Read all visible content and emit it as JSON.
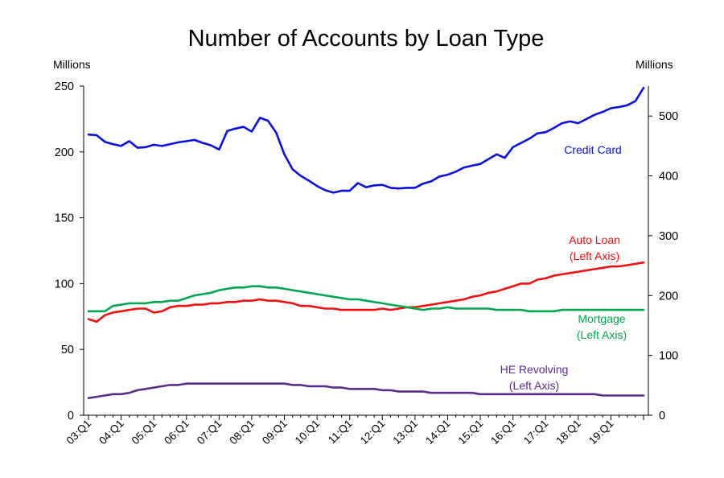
{
  "chart_data": {
    "type": "line",
    "title": "Number of Accounts by Loan Type",
    "y_left": {
      "unit_label": "Millions",
      "range": [
        0,
        250
      ],
      "ticks": [
        0,
        50,
        100,
        150,
        200,
        250
      ]
    },
    "y_right": {
      "unit_label": "Millions",
      "range": [
        0,
        550
      ],
      "ticks": [
        0,
        100,
        200,
        300,
        400,
        500
      ]
    },
    "x_ticks": [
      "03:Q1",
      "04:Q1",
      "05:Q1",
      "06:Q1",
      "07:Q1",
      "08:Q1",
      "09:Q1",
      "10:Q1",
      "11:Q1",
      "12:Q1",
      "13:Q1",
      "14:Q1",
      "15:Q1",
      "16:Q1",
      "17:Q1",
      "18:Q1",
      "19:Q1"
    ],
    "x_start": "2003:Q1",
    "grid": false,
    "legend": "inline labels",
    "series": [
      {
        "name": "Credit Card",
        "label_lines": [
          "Credit Card"
        ],
        "axis": "right",
        "color": "#0a10e0",
        "values": [
          469,
          468,
          457,
          453,
          450,
          458,
          447,
          448,
          452,
          450,
          453,
          456,
          458,
          460,
          455,
          451,
          444,
          475,
          479,
          482,
          474,
          497,
          492,
          472,
          436,
          411,
          400,
          392,
          383,
          376,
          372,
          375,
          375,
          388,
          381,
          384,
          385,
          380,
          379,
          380,
          380,
          387,
          391,
          399,
          402,
          407,
          414,
          417,
          420,
          428,
          436,
          430,
          448,
          455,
          462,
          471,
          473,
          480,
          488,
          491,
          488,
          495,
          502,
          507,
          513,
          515,
          518,
          525,
          547
        ]
      },
      {
        "name": "Auto Loan",
        "label_lines": [
          "Auto Loan",
          "(Left Axis)"
        ],
        "axis": "left",
        "color": "#f01010",
        "values": [
          73,
          71,
          76,
          78,
          79,
          80,
          81,
          81,
          78,
          79,
          82,
          83,
          83,
          84,
          84,
          85,
          85,
          86,
          86,
          87,
          87,
          88,
          87,
          87,
          86,
          85,
          83,
          83,
          82,
          81,
          81,
          80,
          80,
          80,
          80,
          80,
          81,
          80,
          81,
          82,
          82,
          83,
          84,
          85,
          86,
          87,
          88,
          90,
          91,
          93,
          94,
          96,
          98,
          100,
          100,
          103,
          104,
          106,
          107,
          108,
          109,
          110,
          111,
          112,
          113,
          113,
          114,
          115,
          116
        ]
      },
      {
        "name": "Mortgage",
        "label_lines": [
          "Mortgage",
          "(Left Axis)"
        ],
        "axis": "left",
        "color": "#00a651",
        "values": [
          79,
          79,
          79,
          83,
          84,
          85,
          85,
          85,
          86,
          86,
          87,
          87,
          89,
          91,
          92,
          93,
          95,
          96,
          97,
          97,
          98,
          98,
          97,
          97,
          96,
          95,
          94,
          93,
          92,
          91,
          90,
          89,
          88,
          88,
          87,
          86,
          85,
          84,
          83,
          82,
          81,
          80,
          81,
          81,
          82,
          81,
          81,
          81,
          81,
          81,
          80,
          80,
          80,
          80,
          79,
          79,
          79,
          79,
          80,
          80,
          80,
          80,
          80,
          80,
          80,
          80,
          80,
          80,
          80
        ]
      },
      {
        "name": "HE Revolving",
        "label_lines": [
          "HE Revolving",
          "(Left Axis)"
        ],
        "axis": "left",
        "color": "#5b2d8a",
        "values": [
          13,
          14,
          15,
          16,
          16,
          17,
          19,
          20,
          21,
          22,
          23,
          23,
          24,
          24,
          24,
          24,
          24,
          24,
          24,
          24,
          24,
          24,
          24,
          24,
          24,
          23,
          23,
          22,
          22,
          22,
          21,
          21,
          20,
          20,
          20,
          20,
          19,
          19,
          18,
          18,
          18,
          18,
          17,
          17,
          17,
          17,
          17,
          17,
          16,
          16,
          16,
          16,
          16,
          16,
          16,
          16,
          16,
          16,
          16,
          16,
          16,
          16,
          16,
          15,
          15,
          15,
          15,
          15,
          15
        ]
      }
    ]
  }
}
